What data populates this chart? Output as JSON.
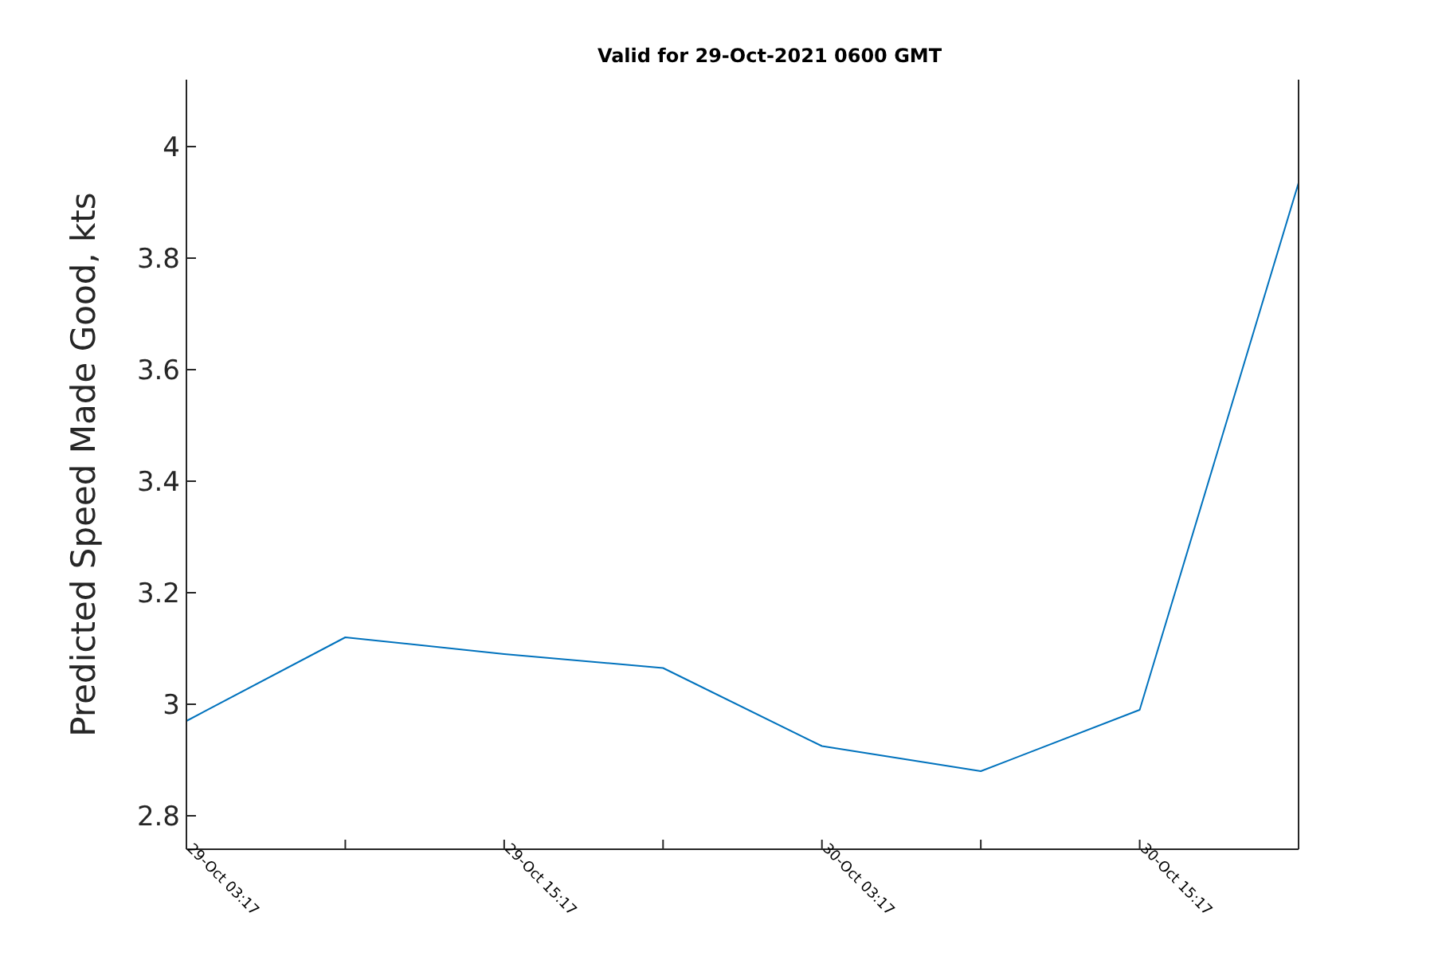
{
  "chart_data": {
    "type": "line",
    "title": "Valid for 29-Oct-2021 0600 GMT",
    "ylabel": "Predicted Speed Made Good, kts",
    "x": [
      "2021-10-29T03:17",
      "2021-10-29T09:17",
      "2021-10-29T15:17",
      "2021-10-29T21:17",
      "2021-10-30T03:17",
      "2021-10-30T09:17",
      "2021-10-30T15:17",
      "2021-10-30T21:17"
    ],
    "series": [
      {
        "color": "#0072bd",
        "values": [
          2.97,
          3.12,
          3.09,
          3.065,
          2.925,
          2.88,
          2.99,
          3.935
        ]
      }
    ],
    "xlim": [
      "2021-10-29T03:17",
      "2021-10-30T21:17"
    ],
    "xticks": [
      {
        "value": "2021-10-29T03:17",
        "label": "29-Oct 03:17"
      },
      {
        "value": "2021-10-29T09:17",
        "label": null
      },
      {
        "value": "2021-10-29T15:17",
        "label": "29-Oct 15:17"
      },
      {
        "value": "2021-10-29T21:17",
        "label": null
      },
      {
        "value": "2021-10-30T03:17",
        "label": "30-Oct 03:17"
      },
      {
        "value": "2021-10-30T09:17",
        "label": null
      },
      {
        "value": "2021-10-30T15:17",
        "label": "30-Oct 15:17"
      }
    ],
    "ylim": [
      2.74,
      4.12
    ],
    "yticks": [
      2.8,
      3,
      3.2,
      3.4,
      3.6,
      3.8,
      4
    ],
    "grid": false,
    "legend": false,
    "marker": "none",
    "line_style": "solid"
  }
}
